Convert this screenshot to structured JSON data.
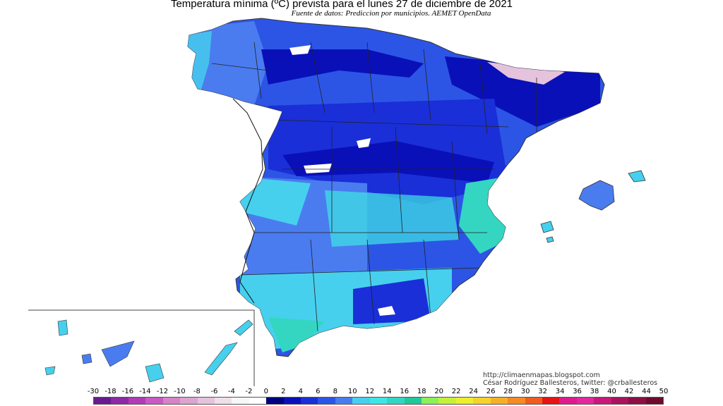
{
  "title": "Temperatura mínima (ºC) prevista para el lunes 27 de diciembre de 2021",
  "subtitle": "Fuente de datos: Prediccion por municipios. AEMET OpenData",
  "credit_url": "http://climaenmapas.blogspot.com",
  "credit_author": "César Rodríguez Ballesteros, twitter: @crballesteros",
  "legend": {
    "labels": [
      "-30",
      "-18",
      "-16",
      "-14",
      "-12",
      "-10",
      "-8",
      "-6",
      "-4",
      "-2",
      "0",
      "2",
      "4",
      "6",
      "8",
      "10",
      "12",
      "14",
      "16",
      "18",
      "20",
      "22",
      "24",
      "26",
      "28",
      "30",
      "32",
      "34",
      "36",
      "38",
      "40",
      "42",
      "44",
      "50"
    ],
    "colors": [
      "#6a1a8f",
      "#8e2aa6",
      "#b23ab8",
      "#c85ac4",
      "#d683c8",
      "#dda4d0",
      "#e6c3dc",
      "#eee0ea",
      "#f7f7f7",
      "#ffffff",
      "#00007f",
      "#0a10b8",
      "#1a2fd8",
      "#2c55e6",
      "#4a7cf0",
      "#46d0ee",
      "#3ee6e4",
      "#34d6c2",
      "#22c89a",
      "#8cf05a",
      "#c4f238",
      "#ecf02c",
      "#f6d22c",
      "#f6b028",
      "#f48b24",
      "#ee5c1e",
      "#e6121a",
      "#de1a8e",
      "#e2289e",
      "#c8187a",
      "#a8125e",
      "#8c0e44",
      "#6e0a2e"
    ],
    "scale": "ºC"
  }
}
